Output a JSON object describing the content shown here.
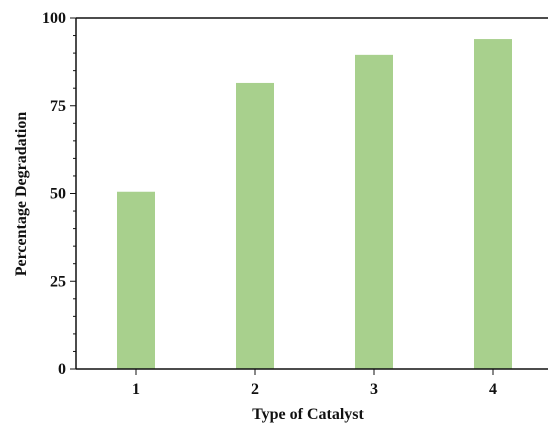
{
  "chart_data": {
    "type": "bar",
    "title": "",
    "xlabel": "Type of Catalyst",
    "ylabel": "Percentage Degradation",
    "categories": [
      "1",
      "2",
      "3",
      "4"
    ],
    "values": [
      50.5,
      81.5,
      89.5,
      94.0
    ],
    "ylim": [
      0,
      100
    ],
    "yticks": [
      "0",
      "25",
      "50",
      "75",
      "100"
    ],
    "grid": false,
    "legend": "none",
    "bar_color": "#a8d08d"
  }
}
